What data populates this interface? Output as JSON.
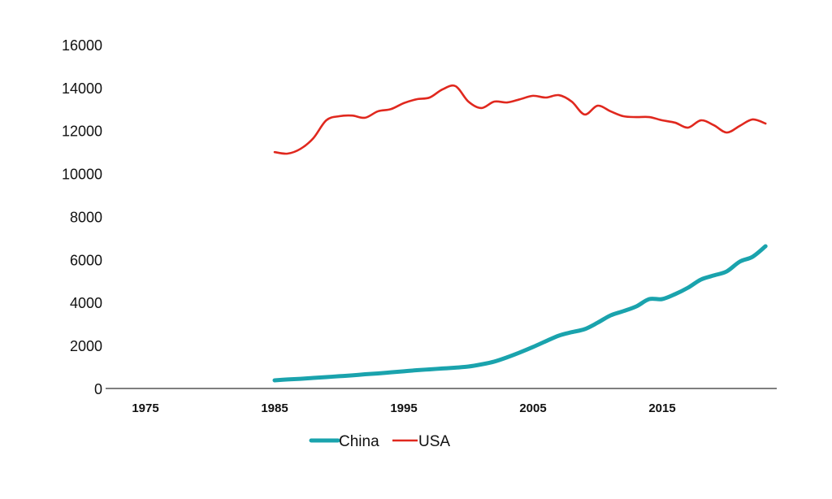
{
  "chart_data": {
    "type": "line",
    "title": "",
    "xlabel": "",
    "ylabel": "",
    "ylim": [
      0,
      16000
    ],
    "xlim": [
      1975,
      2025
    ],
    "grid": false,
    "legend_position": "bottom",
    "y_ticks": [
      "0",
      "2000",
      "4000",
      "6000",
      "8000",
      "10000",
      "12000",
      "14000",
      "16000"
    ],
    "x_ticks": [
      "1975",
      "1985",
      "1995",
      "2005",
      "2015"
    ],
    "x": [
      1985,
      1986,
      1987,
      1988,
      1989,
      1990,
      1991,
      1992,
      1993,
      1994,
      1995,
      1996,
      1997,
      1998,
      1999,
      2000,
      2001,
      2002,
      2003,
      2004,
      2005,
      2006,
      2007,
      2008,
      2009,
      2010,
      2011,
      2012,
      2013,
      2014,
      2015,
      2016,
      2017,
      2018,
      2019,
      2020,
      2021,
      2022,
      2023
    ],
    "series": [
      {
        "name": "China",
        "color": "#1aa3ad",
        "values": [
          380,
          420,
          450,
          490,
          530,
          570,
          610,
          660,
          700,
          750,
          800,
          850,
          890,
          930,
          970,
          1020,
          1120,
          1250,
          1450,
          1680,
          1930,
          2200,
          2460,
          2620,
          2760,
          3060,
          3400,
          3600,
          3820,
          4160,
          4160,
          4390,
          4690,
          5070,
          5260,
          5450,
          5900,
          6130,
          6620
        ]
      },
      {
        "name": "USA",
        "color": "#e0281e",
        "values": [
          11000,
          10930,
          11150,
          11650,
          12480,
          12670,
          12700,
          12600,
          12900,
          13000,
          13280,
          13460,
          13540,
          13920,
          14070,
          13350,
          13050,
          13350,
          13310,
          13460,
          13620,
          13540,
          13650,
          13350,
          12750,
          13160,
          12900,
          12670,
          12630,
          12630,
          12480,
          12370,
          12140,
          12480,
          12250,
          11910,
          12220,
          12520,
          12330
        ]
      }
    ]
  }
}
